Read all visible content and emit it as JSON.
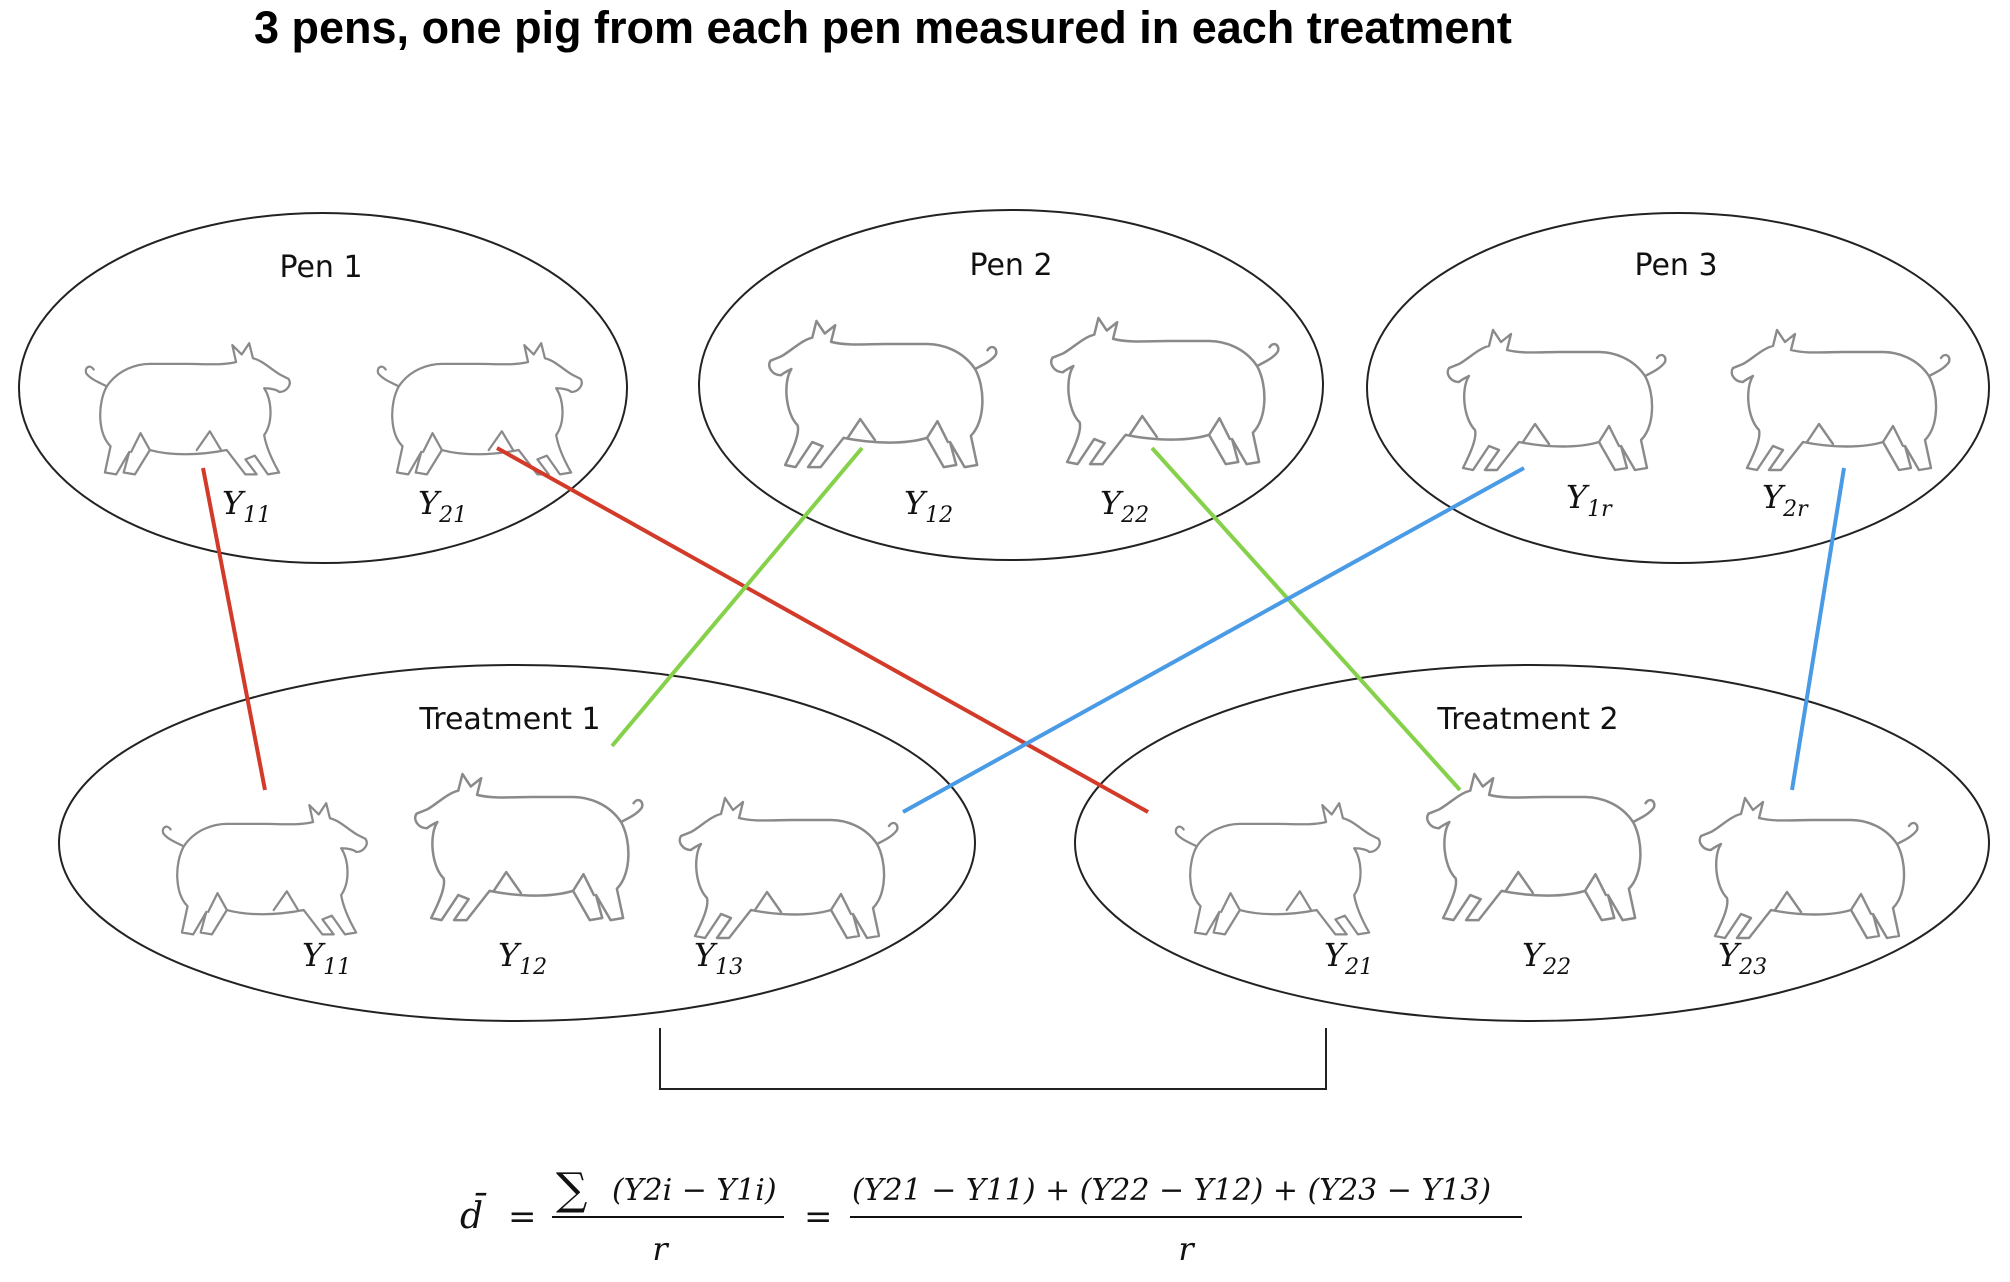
{
  "title": "3 pens, one pig from each pen measured in each treatment",
  "pens": [
    {
      "label": "Pen 1",
      "pigs": [
        {
          "base": "Y",
          "sub": "11"
        },
        {
          "base": "Y",
          "sub": "21"
        }
      ]
    },
    {
      "label": "Pen 2",
      "pigs": [
        {
          "base": "Y",
          "sub": "12"
        },
        {
          "base": "Y",
          "sub": "22"
        }
      ]
    },
    {
      "label": "Pen 3",
      "pigs": [
        {
          "base": "Y",
          "sub": "1r"
        },
        {
          "base": "Y",
          "sub": "2r"
        }
      ]
    }
  ],
  "treatments": [
    {
      "label": "Treatment 1",
      "pigs": [
        {
          "base": "Y",
          "sub": "11"
        },
        {
          "base": "Y",
          "sub": "12"
        },
        {
          "base": "Y",
          "sub": "13"
        }
      ]
    },
    {
      "label": "Treatment 2",
      "pigs": [
        {
          "base": "Y",
          "sub": "21"
        },
        {
          "base": "Y",
          "sub": "22"
        },
        {
          "base": "Y",
          "sub": "23"
        }
      ]
    }
  ],
  "colors": {
    "pen1": "#d23b2a",
    "pen2": "#86d14a",
    "pen3": "#4a9be6"
  },
  "formula": {
    "lhs": "d̄",
    "eq": "=",
    "sum": "∑",
    "num1": "(Y2i − Y1i)",
    "den": "r",
    "num2": "(Y21 − Y11) +  (Y22 − Y12) +  (Y23 − Y13)"
  }
}
